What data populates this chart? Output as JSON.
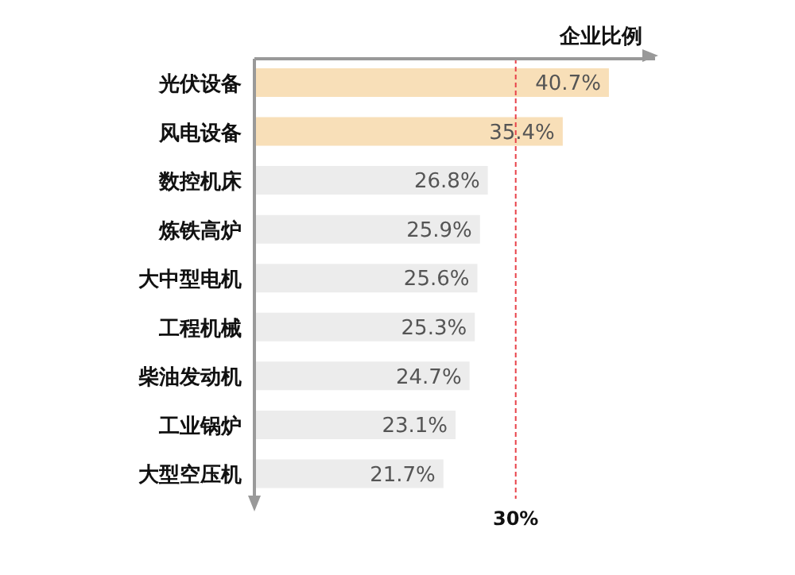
{
  "chart_data": {
    "type": "bar",
    "orientation": "horizontal",
    "xlabel": "企业比例",
    "categories": [
      "光伏设备",
      "风电设备",
      "数控机床",
      "炼铁高炉",
      "大中型电机",
      "工程机械",
      "柴油发动机",
      "工业锅炉",
      "大型空压机"
    ],
    "values": [
      40.7,
      35.4,
      26.8,
      25.9,
      25.6,
      25.3,
      24.7,
      23.1,
      21.7
    ],
    "value_labels": [
      "40.7%",
      "35.4%",
      "26.8%",
      "25.9%",
      "25.6%",
      "25.3%",
      "24.7%",
      "23.1%",
      "21.7%"
    ],
    "colors": [
      "#f8dfb8",
      "#f8dfb8",
      "#ececec",
      "#ececec",
      "#ececec",
      "#ececec",
      "#ececec",
      "#ececec",
      "#ececec"
    ],
    "xlim": [
      0,
      46
    ],
    "ref_lines": [
      {
        "axis": "x",
        "value": 30,
        "label": "30%",
        "color": "#e8424a",
        "line_style": "dashed"
      }
    ],
    "grid": false
  }
}
